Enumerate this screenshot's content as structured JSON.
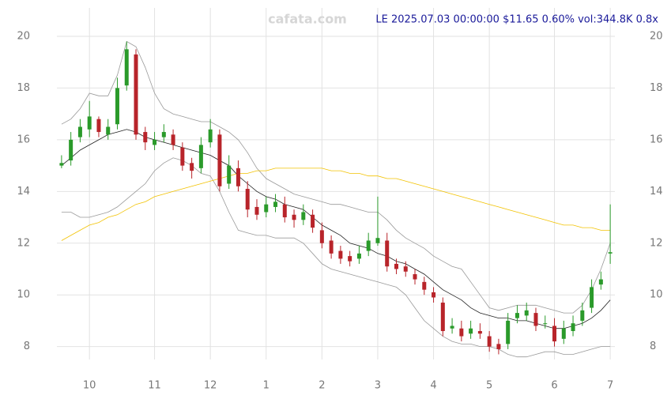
{
  "chart_data": {
    "type": "candlestick",
    "watermark": "cafata.com",
    "info": "LE 2025.07.03 00:00:00 $11.65 0.60% vol:344.8K 0.8x",
    "categories": [
      null,
      null,
      null,
      "10",
      null,
      null,
      null,
      null,
      null,
      null,
      "11",
      null,
      null,
      null,
      null,
      null,
      "12",
      null,
      null,
      null,
      null,
      null,
      "1",
      null,
      null,
      null,
      null,
      null,
      "2",
      null,
      null,
      null,
      null,
      null,
      "3",
      null,
      null,
      null,
      null,
      null,
      "4",
      null,
      null,
      null,
      null,
      null,
      "5",
      null,
      null,
      null,
      null,
      null,
      null,
      "6",
      null,
      null,
      null,
      null,
      null,
      "7"
    ],
    "open": [
      15.0,
      15.2,
      16.1,
      16.4,
      16.8,
      16.2,
      16.6,
      18.1,
      19.3,
      16.3,
      15.8,
      16.1,
      16.2,
      15.7,
      15.1,
      14.9,
      15.9,
      16.2,
      14.3,
      14.9,
      14.1,
      13.4,
      13.2,
      13.4,
      13.5,
      13.1,
      12.9,
      13.1,
      12.5,
      12.1,
      11.7,
      11.5,
      11.4,
      11.7,
      12.0,
      12.1,
      11.2,
      11.1,
      10.8,
      10.5,
      10.1,
      9.7,
      8.7,
      8.7,
      8.5,
      8.6,
      8.4,
      8.1,
      8.1,
      9.1,
      9.2,
      9.3,
      8.9,
      8.8,
      8.3,
      8.6,
      9.0,
      9.5,
      10.4,
      11.6
    ],
    "high": [
      15.4,
      16.3,
      16.8,
      17.5,
      16.9,
      16.8,
      18.4,
      19.8,
      19.5,
      16.5,
      16.3,
      16.6,
      16.4,
      15.9,
      15.3,
      16.1,
      16.8,
      16.4,
      15.4,
      15.2,
      14.4,
      13.7,
      13.8,
      13.9,
      13.8,
      13.3,
      13.5,
      13.3,
      12.8,
      12.3,
      11.9,
      11.7,
      11.9,
      12.4,
      13.8,
      12.4,
      11.4,
      11.3,
      11.0,
      10.7,
      10.3,
      9.9,
      9.1,
      9.0,
      9.0,
      8.9,
      8.6,
      8.3,
      9.3,
      9.6,
      9.7,
      9.5,
      9.2,
      9.1,
      9.0,
      9.2,
      9.7,
      10.6,
      10.9,
      13.5
    ],
    "low": [
      14.9,
      15.0,
      15.9,
      16.1,
      16.1,
      16.0,
      16.4,
      17.9,
      16.0,
      15.6,
      15.6,
      15.9,
      15.6,
      14.8,
      14.5,
      14.7,
      15.7,
      14.0,
      14.1,
      14.0,
      13.0,
      12.9,
      13.0,
      13.2,
      12.8,
      12.6,
      12.7,
      12.4,
      11.8,
      11.4,
      11.2,
      11.1,
      11.2,
      11.5,
      11.9,
      10.9,
      10.8,
      10.7,
      10.4,
      10.0,
      9.7,
      8.4,
      8.5,
      8.2,
      8.3,
      8.3,
      7.8,
      7.7,
      7.9,
      8.9,
      9.0,
      8.6,
      8.7,
      8.0,
      8.1,
      8.4,
      8.8,
      9.3,
      10.2,
      11.2
    ],
    "close": [
      15.1,
      16.0,
      16.5,
      16.9,
      16.3,
      16.5,
      18.0,
      19.5,
      16.2,
      15.9,
      16.0,
      16.3,
      15.8,
      15.0,
      14.8,
      15.8,
      16.4,
      14.2,
      15.0,
      14.2,
      13.3,
      13.1,
      13.5,
      13.6,
      13.0,
      12.9,
      13.2,
      12.6,
      12.0,
      11.6,
      11.4,
      11.3,
      11.6,
      12.1,
      12.2,
      11.1,
      11.0,
      10.9,
      10.6,
      10.2,
      9.9,
      8.6,
      8.8,
      8.4,
      8.7,
      8.5,
      8.0,
      7.9,
      9.0,
      9.3,
      9.4,
      8.8,
      8.9,
      8.2,
      8.7,
      8.9,
      9.4,
      10.3,
      10.6,
      11.65
    ],
    "up_color": "#2a9a2a",
    "down_color": "#b8242a",
    "overlays": [
      {
        "color": "#999999",
        "values": [
          16.6,
          16.8,
          17.2,
          17.8,
          17.7,
          17.7,
          18.5,
          19.8,
          19.6,
          18.8,
          17.8,
          17.2,
          17.0,
          16.9,
          16.8,
          16.7,
          16.7,
          16.5,
          16.3,
          16.0,
          15.5,
          14.9,
          14.5,
          14.3,
          14.1,
          13.9,
          13.8,
          13.7,
          13.6,
          13.5,
          13.5,
          13.4,
          13.3,
          13.2,
          13.2,
          12.9,
          12.5,
          12.2,
          12.0,
          11.8,
          11.5,
          11.3,
          11.1,
          11.0,
          10.5,
          10.0,
          9.5,
          9.4,
          9.5,
          9.6,
          9.6,
          9.6,
          9.5,
          9.4,
          9.3,
          9.3,
          9.6,
          10.2,
          11.0,
          12.0
        ]
      },
      {
        "color": "#999999",
        "values": [
          13.2,
          13.2,
          13.0,
          13.0,
          13.1,
          13.2,
          13.4,
          13.7,
          14.0,
          14.3,
          14.8,
          15.1,
          15.3,
          15.2,
          15.0,
          14.7,
          14.6,
          14.0,
          13.2,
          12.5,
          12.4,
          12.3,
          12.3,
          12.2,
          12.2,
          12.2,
          12.0,
          11.6,
          11.2,
          11.0,
          10.9,
          10.8,
          10.7,
          10.6,
          10.5,
          10.4,
          10.3,
          10.0,
          9.5,
          9.0,
          8.7,
          8.4,
          8.2,
          8.1,
          8.1,
          8.0,
          8.0,
          7.9,
          7.7,
          7.6,
          7.6,
          7.7,
          7.8,
          7.8,
          7.7,
          7.7,
          7.8,
          7.9,
          8.0,
          8.0
        ]
      },
      {
        "color": "#222222",
        "values": [
          15.0,
          15.3,
          15.6,
          15.8,
          16.0,
          16.2,
          16.3,
          16.4,
          16.3,
          16.1,
          16.0,
          15.9,
          15.8,
          15.7,
          15.6,
          15.5,
          15.4,
          15.2,
          15.0,
          14.6,
          14.3,
          14.0,
          13.8,
          13.7,
          13.5,
          13.4,
          13.3,
          13.0,
          12.7,
          12.5,
          12.3,
          12.0,
          11.9,
          11.8,
          11.6,
          11.5,
          11.3,
          11.2,
          11.0,
          10.8,
          10.5,
          10.2,
          10.0,
          9.8,
          9.5,
          9.3,
          9.2,
          9.1,
          9.1,
          9.0,
          9.0,
          8.9,
          8.8,
          8.7,
          8.7,
          8.8,
          8.9,
          9.1,
          9.4,
          9.8
        ]
      },
      {
        "color": "#f2c200",
        "values": [
          12.1,
          12.3,
          12.5,
          12.7,
          12.8,
          13.0,
          13.1,
          13.3,
          13.5,
          13.6,
          13.8,
          13.9,
          14.0,
          14.1,
          14.2,
          14.3,
          14.4,
          14.5,
          14.6,
          14.7,
          14.7,
          14.8,
          14.8,
          14.9,
          14.9,
          14.9,
          14.9,
          14.9,
          14.9,
          14.8,
          14.8,
          14.7,
          14.7,
          14.6,
          14.6,
          14.5,
          14.5,
          14.4,
          14.3,
          14.2,
          14.1,
          14.0,
          13.9,
          13.8,
          13.7,
          13.6,
          13.5,
          13.4,
          13.3,
          13.2,
          13.1,
          13.0,
          12.9,
          12.8,
          12.7,
          12.7,
          12.6,
          12.6,
          12.5,
          12.5
        ]
      }
    ],
    "ylim": [
      7.5,
      21.1
    ],
    "yticks": [
      8,
      10,
      12,
      14,
      16,
      18,
      20
    ],
    "grid": true
  }
}
